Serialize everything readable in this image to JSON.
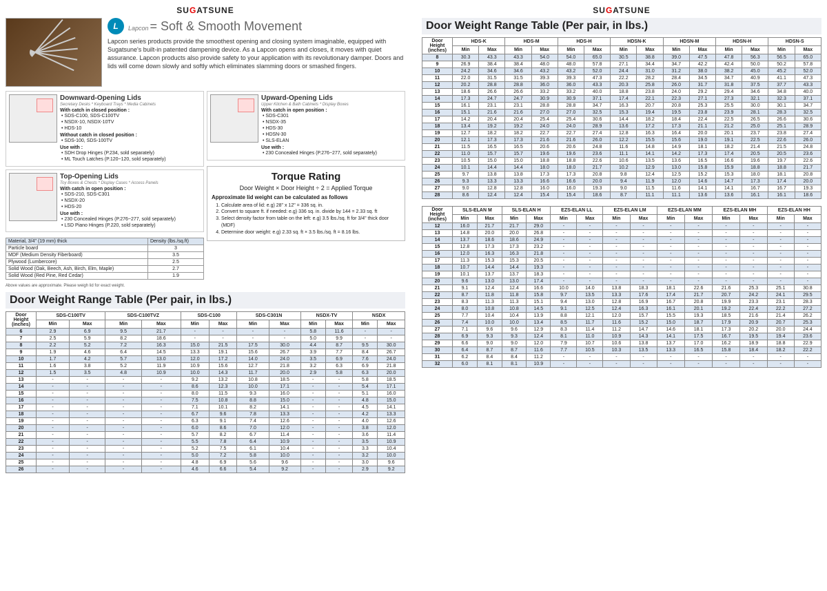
{
  "brand": "SUGATSUNE",
  "lapcon": {
    "name": "Lapcon",
    "tagline": "= Soft & Smooth Movement"
  },
  "intro": "Lapcon series products provide the smoothest opening and closing system imaginable, equipped with Sugatsune's built-in patented dampening device. As a Lapcon opens and closes, it moves with quiet assurance. Lapcon products also provide safety to your application with its revolutionary damper. Doors and lids will come down slowly and softly which eliminates slamming doors or smashed fingers.",
  "lids": {
    "down": {
      "title": "Downward-Opening Lids",
      "sub": "Secretary Desks * Keyboard Trays * Media Cabinets",
      "h1": "With catch in closed position :",
      "l1": [
        "SDS-C100, SDS-C100TV",
        "NSDX-10, NSDX-10TV",
        "HDS-10"
      ],
      "h2": "Without catch in closed position :",
      "l2": [
        "SDS-100, SDS-100TV"
      ],
      "h3": "Use with :",
      "l3": [
        "SDH Drop Hinges (P.234, sold separately)",
        "ML Touch Latches (P.120~120, sold separately)"
      ]
    },
    "up": {
      "title": "Upward-Opening Lids",
      "sub": "Upper Kitchen & Bath Cabinets * Display Boxes",
      "h1": "With catch in open position :",
      "l1": [
        "SDS-C301",
        "NSDX-35",
        "HDS-30",
        "HDSN-30",
        "SLS-ELAN"
      ],
      "h3": "Use with :",
      "l3": [
        "230 Concealed Hinges (P.276~277, sold separately)"
      ]
    },
    "top": {
      "title": "Top-Opening Lids",
      "sub": "Toy Boxes & Chests * Display Cases * Access Panels",
      "h1": "With catch in open position :",
      "l1": [
        "SDS-210, SDS-C301",
        "NSDX-20",
        "HDS-20"
      ],
      "h3": "Use with :",
      "l3": [
        "230 Concealed Hinges (P.276~277, sold separately)",
        "LSD Piano Hinges (P.220, sold separately)"
      ]
    }
  },
  "torque": {
    "title": "Torque Rating",
    "formula": "Door Weight × Door Height ÷ 2 = Applied Torque",
    "sub": "Approximate lid weight can be calculated as follows",
    "steps": [
      "Calculate area of lid: e.g) 28\" x 12\" = 336 sq. in.",
      "Convert to square ft. if needed: e.g) 336 sq. in. divide by 144 = 2.33 sq. ft",
      "Select density factor from table on the left: e.g) 3.5 lbs./sq. ft for 3/4\" thick door (MDF)",
      "Determine door weight: e.g) 2.33 sq. ft × 3.5 lbs./sq. ft = 8.16 lbs."
    ]
  },
  "materials": {
    "hdr": [
      "Material, 3/4\" (19 mm) thick",
      "Density (lbs./sq.ft)"
    ],
    "rows": [
      [
        "Particle board",
        "3"
      ],
      [
        "MDF (Medium Density Fiberboard)",
        "3.5"
      ],
      [
        "Plywood (Lumbercore)",
        "2.5"
      ],
      [
        "Solid Wood (Oak, Beech, Ash, Birch, Elm, Maple)",
        "2.7"
      ],
      [
        "Solid Wood (Red Pine, Red Cedar)",
        "1.9"
      ]
    ],
    "note": "Above values are approximate. Please weigh lid for exact weight."
  },
  "table_title": "Door Weight Range Table (Per pair, in lbs.)",
  "dh_label": "Door Height (inches)",
  "t1": {
    "cols": [
      "SDS-C100TV",
      "SDS-C100TVZ",
      "SDS-C100",
      "SDS-C301N",
      "NSDX-TV",
      "NSDX"
    ],
    "rows": [
      [
        "6",
        "2.9",
        "6.9",
        "9.5",
        "21.7",
        "-",
        "-",
        "-",
        "-",
        "5.8",
        "11.6",
        "-",
        "-"
      ],
      [
        "7",
        "2.5",
        "5.9",
        "8.2",
        "18.6",
        "-",
        "-",
        "-",
        "-",
        "5.0",
        "9.9",
        "-",
        "-"
      ],
      [
        "8",
        "2.2",
        "5.2",
        "7.2",
        "16.3",
        "15.0",
        "21.5",
        "17.5",
        "30.0",
        "4.4",
        "8.7",
        "9.5",
        "30.0"
      ],
      [
        "9",
        "1.9",
        "4.6",
        "6.4",
        "14.5",
        "13.3",
        "19.1",
        "15.6",
        "26.7",
        "3.9",
        "7.7",
        "8.4",
        "26.7"
      ],
      [
        "10",
        "1.7",
        "4.2",
        "5.7",
        "13.0",
        "12.0",
        "17.2",
        "14.0",
        "24.0",
        "3.5",
        "6.9",
        "7.6",
        "24.0"
      ],
      [
        "11",
        "1.6",
        "3.8",
        "5.2",
        "11.9",
        "10.9",
        "15.6",
        "12.7",
        "21.8",
        "3.2",
        "6.3",
        "6.9",
        "21.8"
      ],
      [
        "12",
        "1.5",
        "3.5",
        "4.8",
        "10.9",
        "10.0",
        "14.3",
        "11.7",
        "20.0",
        "2.9",
        "5.8",
        "6.3",
        "20.0"
      ],
      [
        "13",
        "-",
        "-",
        "-",
        "-",
        "9.2",
        "13.2",
        "10.8",
        "18.5",
        "-",
        "-",
        "5.8",
        "18.5"
      ],
      [
        "14",
        "-",
        "-",
        "-",
        "-",
        "8.6",
        "12.3",
        "10.0",
        "17.1",
        "-",
        "-",
        "5.4",
        "17.1"
      ],
      [
        "15",
        "-",
        "-",
        "-",
        "-",
        "8.0",
        "11.5",
        "9.3",
        "16.0",
        "-",
        "-",
        "5.1",
        "16.0"
      ],
      [
        "16",
        "-",
        "-",
        "-",
        "-",
        "7.5",
        "10.8",
        "8.8",
        "15.0",
        "-",
        "-",
        "4.8",
        "15.0"
      ],
      [
        "17",
        "-",
        "-",
        "-",
        "-",
        "7.1",
        "10.1",
        "8.2",
        "14.1",
        "-",
        "-",
        "4.5",
        "14.1"
      ],
      [
        "18",
        "-",
        "-",
        "-",
        "-",
        "6.7",
        "9.6",
        "7.8",
        "13.3",
        "-",
        "-",
        "4.2",
        "13.3"
      ],
      [
        "19",
        "-",
        "-",
        "-",
        "-",
        "6.3",
        "9.1",
        "7.4",
        "12.6",
        "-",
        "-",
        "4.0",
        "12.6"
      ],
      [
        "20",
        "-",
        "-",
        "-",
        "-",
        "6.0",
        "8.6",
        "7.0",
        "12.0",
        "-",
        "-",
        "3.8",
        "12.0"
      ],
      [
        "21",
        "-",
        "-",
        "-",
        "-",
        "5.7",
        "8.2",
        "6.7",
        "11.4",
        "-",
        "-",
        "3.6",
        "11.4"
      ],
      [
        "22",
        "-",
        "-",
        "-",
        "-",
        "5.5",
        "7.8",
        "6.4",
        "10.9",
        "-",
        "-",
        "3.5",
        "10.9"
      ],
      [
        "23",
        "-",
        "-",
        "-",
        "-",
        "5.2",
        "7.5",
        "6.1",
        "10.4",
        "-",
        "-",
        "3.3",
        "10.4"
      ],
      [
        "24",
        "-",
        "-",
        "-",
        "-",
        "5.0",
        "7.2",
        "5.8",
        "10.0",
        "-",
        "-",
        "3.2",
        "10.0"
      ],
      [
        "25",
        "-",
        "-",
        "-",
        "-",
        "4.8",
        "6.9",
        "5.6",
        "9.6",
        "-",
        "-",
        "3.0",
        "9.6"
      ],
      [
        "26",
        "-",
        "-",
        "-",
        "-",
        "4.6",
        "6.6",
        "5.4",
        "9.2",
        "-",
        "-",
        "2.9",
        "9.2"
      ]
    ]
  },
  "t2": {
    "cols": [
      "HDS-K",
      "HDS-M",
      "HDS-H",
      "HDSN-K",
      "HDSN-M",
      "HDSN-H",
      "HDSN-S"
    ],
    "rows": [
      [
        "8",
        "30.3",
        "43.3",
        "43.3",
        "54.0",
        "54.0",
        "65.0",
        "30.5",
        "38.8",
        "39.0",
        "47.5",
        "47.8",
        "56.3",
        "56.5",
        "65.0"
      ],
      [
        "9",
        "26.9",
        "38.4",
        "38.4",
        "48.0",
        "48.0",
        "57.8",
        "27.1",
        "34.4",
        "34.7",
        "42.2",
        "42.4",
        "50.0",
        "50.2",
        "57.8"
      ],
      [
        "10",
        "24.2",
        "34.6",
        "34.6",
        "43.2",
        "43.2",
        "52.0",
        "24.4",
        "31.0",
        "31.2",
        "38.0",
        "38.2",
        "45.0",
        "45.2",
        "52.0"
      ],
      [
        "11",
        "22.0",
        "31.5",
        "31.5",
        "39.3",
        "39.3",
        "47.3",
        "22.2",
        "28.2",
        "28.4",
        "34.5",
        "34.7",
        "40.9",
        "41.1",
        "47.3"
      ],
      [
        "12",
        "20.2",
        "28.8",
        "28.8",
        "36.0",
        "36.0",
        "43.3",
        "20.3",
        "25.8",
        "26.0",
        "31.7",
        "31.8",
        "37.5",
        "37.7",
        "43.3"
      ],
      [
        "13",
        "18.6",
        "26.6",
        "26.6",
        "33.2",
        "33.2",
        "40.0",
        "18.8",
        "23.8",
        "24.0",
        "29.2",
        "29.4",
        "34.6",
        "34.8",
        "40.0"
      ],
      [
        "14",
        "17.3",
        "24.7",
        "24.7",
        "30.9",
        "30.9",
        "37.1",
        "17.4",
        "22.1",
        "22.3",
        "27.1",
        "27.3",
        "32.1",
        "32.3",
        "37.1"
      ],
      [
        "15",
        "16.1",
        "23.1",
        "23.1",
        "28.8",
        "28.8",
        "34.7",
        "16.3",
        "20.7",
        "20.8",
        "25.3",
        "25.5",
        "30.0",
        "30.1",
        "34.7"
      ],
      [
        "16",
        "15.1",
        "21.6",
        "21.6",
        "27.0",
        "27.0",
        "32.5",
        "15.3",
        "19.4",
        "19.5",
        "23.8",
        "23.9",
        "28.1",
        "28.3",
        "32.5"
      ],
      [
        "17",
        "14.2",
        "20.4",
        "20.4",
        "25.4",
        "25.4",
        "30.6",
        "14.4",
        "18.2",
        "18.4",
        "22.4",
        "22.5",
        "26.5",
        "26.6",
        "30.6"
      ],
      [
        "18",
        "13.4",
        "19.2",
        "19.2",
        "24.0",
        "24.0",
        "28.9",
        "13.6",
        "17.2",
        "17.3",
        "21.1",
        "21.2",
        "25.0",
        "25.1",
        "28.9"
      ],
      [
        "19",
        "12.7",
        "18.2",
        "18.2",
        "22.7",
        "22.7",
        "27.4",
        "12.8",
        "16.3",
        "16.4",
        "20.0",
        "20.1",
        "23.7",
        "23.8",
        "27.4"
      ],
      [
        "20",
        "12.1",
        "17.3",
        "17.3",
        "21.6",
        "21.6",
        "26.0",
        "12.2",
        "15.5",
        "15.6",
        "19.0",
        "19.1",
        "22.5",
        "22.6",
        "26.0"
      ],
      [
        "21",
        "11.5",
        "16.5",
        "16.5",
        "20.6",
        "20.6",
        "24.8",
        "11.6",
        "14.8",
        "14.9",
        "18.1",
        "18.2",
        "21.4",
        "21.5",
        "24.8"
      ],
      [
        "22",
        "11.0",
        "15.7",
        "15.7",
        "19.6",
        "19.6",
        "23.6",
        "11.1",
        "14.1",
        "14.2",
        "17.3",
        "17.4",
        "20.5",
        "20.5",
        "23.6"
      ],
      [
        "23",
        "10.5",
        "15.0",
        "15.0",
        "18.8",
        "18.8",
        "22.6",
        "10.6",
        "13.5",
        "13.6",
        "16.5",
        "16.6",
        "19.6",
        "19.7",
        "22.6"
      ],
      [
        "24",
        "10.1",
        "14.4",
        "14.4",
        "18.0",
        "18.0",
        "21.7",
        "10.2",
        "12.9",
        "13.0",
        "15.8",
        "15.9",
        "18.8",
        "18.8",
        "21.7"
      ],
      [
        "25",
        "9.7",
        "13.8",
        "13.8",
        "17.3",
        "17.3",
        "20.8",
        "9.8",
        "12.4",
        "12.5",
        "15.2",
        "15.3",
        "18.0",
        "18.1",
        "20.8"
      ],
      [
        "26",
        "9.3",
        "13.3",
        "13.3",
        "16.6",
        "16.6",
        "20.0",
        "9.4",
        "11.9",
        "12.0",
        "14.6",
        "14.7",
        "17.3",
        "17.4",
        "20.0"
      ],
      [
        "27",
        "9.0",
        "12.8",
        "12.8",
        "16.0",
        "16.0",
        "19.3",
        "9.0",
        "11.5",
        "11.6",
        "14.1",
        "14.1",
        "16.7",
        "16.7",
        "19.3"
      ],
      [
        "28",
        "8.6",
        "12.4",
        "12.4",
        "15.4",
        "15.4",
        "18.6",
        "8.7",
        "11.1",
        "11.1",
        "13.6",
        "13.6",
        "16.1",
        "16.1",
        "18.6"
      ]
    ]
  },
  "t3": {
    "cols": [
      "SLS-ELAN M",
      "SLS-ELAN H",
      "EZS-ELAN LL",
      "EZS-ELAN LM",
      "EZS-ELAN MM",
      "EZS-ELAN MH",
      "EZS-ELAN HH"
    ],
    "rows": [
      [
        "12",
        "16.0",
        "21.7",
        "21.7",
        "29.0",
        "-",
        "-",
        "-",
        "-",
        "-",
        "-",
        "-",
        "-",
        "-",
        "-"
      ],
      [
        "13",
        "14.8",
        "20.0",
        "20.0",
        "26.8",
        "-",
        "-",
        "-",
        "-",
        "-",
        "-",
        "-",
        "-",
        "-",
        "-"
      ],
      [
        "14",
        "13.7",
        "18.6",
        "18.6",
        "24.9",
        "-",
        "-",
        "-",
        "-",
        "-",
        "-",
        "-",
        "-",
        "-",
        "-"
      ],
      [
        "15",
        "12.8",
        "17.3",
        "17.3",
        "23.2",
        "-",
        "-",
        "-",
        "-",
        "-",
        "-",
        "-",
        "-",
        "-",
        "-"
      ],
      [
        "16",
        "12.0",
        "16.3",
        "16.3",
        "21.8",
        "-",
        "-",
        "-",
        "-",
        "-",
        "-",
        "-",
        "-",
        "-",
        "-"
      ],
      [
        "17",
        "11.3",
        "15.3",
        "15.3",
        "20.5",
        "-",
        "-",
        "-",
        "-",
        "-",
        "-",
        "-",
        "-",
        "-",
        "-"
      ],
      [
        "18",
        "10.7",
        "14.4",
        "14.4",
        "19.3",
        "-",
        "-",
        "-",
        "-",
        "-",
        "-",
        "-",
        "-",
        "-",
        "-"
      ],
      [
        "19",
        "10.1",
        "13.7",
        "13.7",
        "18.3",
        "-",
        "-",
        "-",
        "-",
        "-",
        "-",
        "-",
        "-",
        "-",
        "-"
      ],
      [
        "20",
        "9.6",
        "13.0",
        "13.0",
        "17.4",
        "-",
        "-",
        "-",
        "-",
        "-",
        "-",
        "-",
        "-",
        "-",
        "-"
      ],
      [
        "21",
        "9.1",
        "12.4",
        "12.4",
        "16.6",
        "10.0",
        "14.0",
        "13.8",
        "18.3",
        "18.1",
        "22.6",
        "21.6",
        "25.3",
        "25.1",
        "30.8"
      ],
      [
        "22",
        "8.7",
        "11.8",
        "11.8",
        "15.8",
        "9.7",
        "13.5",
        "13.3",
        "17.6",
        "17.4",
        "21.7",
        "20.7",
        "24.2",
        "24.1",
        "29.5"
      ],
      [
        "23",
        "8.3",
        "11.3",
        "11.3",
        "15.1",
        "9.4",
        "13.0",
        "12.8",
        "16.9",
        "16.7",
        "20.8",
        "19.9",
        "23.3",
        "23.1",
        "28.3"
      ],
      [
        "24",
        "8.0",
        "10.8",
        "10.8",
        "14.5",
        "9.1",
        "12.5",
        "12.4",
        "16.3",
        "16.1",
        "20.1",
        "19.2",
        "22.4",
        "22.2",
        "27.2"
      ],
      [
        "25",
        "7.7",
        "10.4",
        "10.4",
        "13.9",
        "8.8",
        "12.1",
        "12.0",
        "15.7",
        "15.5",
        "19.3",
        "18.5",
        "21.6",
        "21.4",
        "26.2"
      ],
      [
        "26",
        "7.4",
        "10.0",
        "10.0",
        "13.4",
        "8.5",
        "11.7",
        "11.6",
        "15.2",
        "15.0",
        "18.7",
        "17.9",
        "20.9",
        "20.7",
        "25.3"
      ],
      [
        "27",
        "7.1",
        "9.6",
        "9.6",
        "12.9",
        "8.3",
        "11.4",
        "11.2",
        "14.7",
        "14.6",
        "18.1",
        "17.3",
        "20.2",
        "20.0",
        "24.4"
      ],
      [
        "28",
        "6.9",
        "9.3",
        "9.3",
        "12.4",
        "8.1",
        "11.0",
        "10.9",
        "14.3",
        "14.1",
        "17.5",
        "16.7",
        "19.5",
        "19.4",
        "23.6"
      ],
      [
        "29",
        "6.6",
        "9.0",
        "9.0",
        "12.0",
        "7.9",
        "10.7",
        "10.6",
        "13.8",
        "13.7",
        "17.0",
        "16.2",
        "18.9",
        "18.8",
        "22.9"
      ],
      [
        "30",
        "6.4",
        "8.7",
        "8.7",
        "11.6",
        "7.7",
        "10.5",
        "10.3",
        "13.5",
        "13.3",
        "16.5",
        "15.8",
        "18.4",
        "18.2",
        "22.2"
      ],
      [
        "31",
        "6.2",
        "8.4",
        "8.4",
        "11.2",
        "-",
        "-",
        "-",
        "-",
        "-",
        "-",
        "-",
        "-",
        "-",
        "-"
      ],
      [
        "32",
        "6.0",
        "8.1",
        "8.1",
        "10.9",
        "-",
        "-",
        "-",
        "-",
        "-",
        "-",
        "-",
        "-",
        "-",
        "-"
      ]
    ]
  },
  "min": "Min",
  "max": "Max"
}
